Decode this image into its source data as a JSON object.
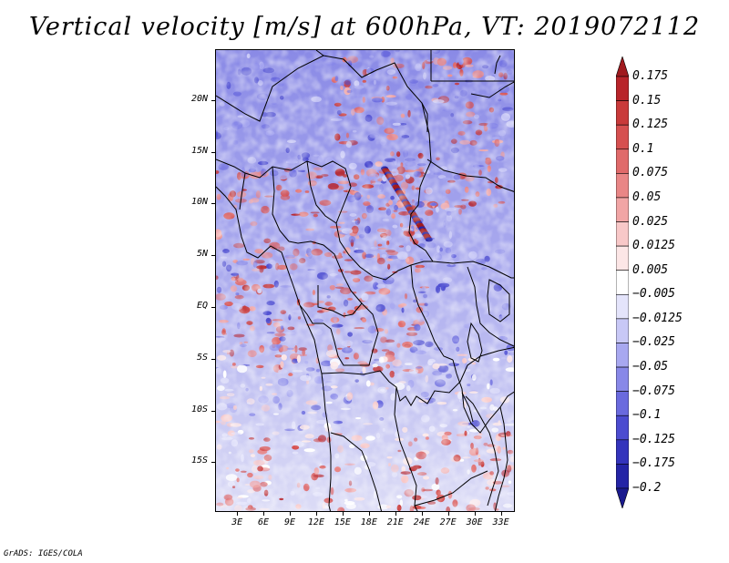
{
  "title": "Vertical velocity [m/s] at 600hPa, VT: 2019072112",
  "credit": "GrADS: IGES/COLA",
  "map": {
    "lat_labels": [
      "20N",
      "15N",
      "10N",
      "5N",
      "EQ",
      "5S",
      "10S",
      "15S"
    ],
    "lat_values": [
      20,
      15,
      10,
      5,
      0,
      -5,
      -10,
      -15
    ],
    "lon_labels": [
      "3E",
      "6E",
      "9E",
      "12E",
      "15E",
      "18E",
      "21E",
      "24E",
      "27E",
      "30E",
      "33E"
    ],
    "lon_values": [
      3,
      6,
      9,
      12,
      15,
      18,
      21,
      24,
      27,
      30,
      33
    ],
    "lon_range": [
      0.5,
      34.6
    ],
    "lat_range": [
      -19.8,
      24.9
    ]
  },
  "colorbar": {
    "labels": [
      "0.175",
      "0.15",
      "0.125",
      "0.1",
      "0.075",
      "0.05",
      "0.025",
      "0.0125",
      "0.005",
      "−0.005",
      "−0.0125",
      "−0.025",
      "−0.05",
      "−0.075",
      "−0.1",
      "−0.125",
      "−0.175",
      "−0.2"
    ],
    "colors": [
      "#a01a1e",
      "#b8242a",
      "#c93a3a",
      "#d65050",
      "#e06a6a",
      "#e98686",
      "#f1a5a5",
      "#f8c8c8",
      "#fce6e6",
      "#ffffff",
      "#e4e4fb",
      "#c8c8f6",
      "#a8a8f0",
      "#8888e8",
      "#6a6ade",
      "#4c4cd0",
      "#3434bc",
      "#2424a6",
      "#1a1a8e"
    ]
  }
}
